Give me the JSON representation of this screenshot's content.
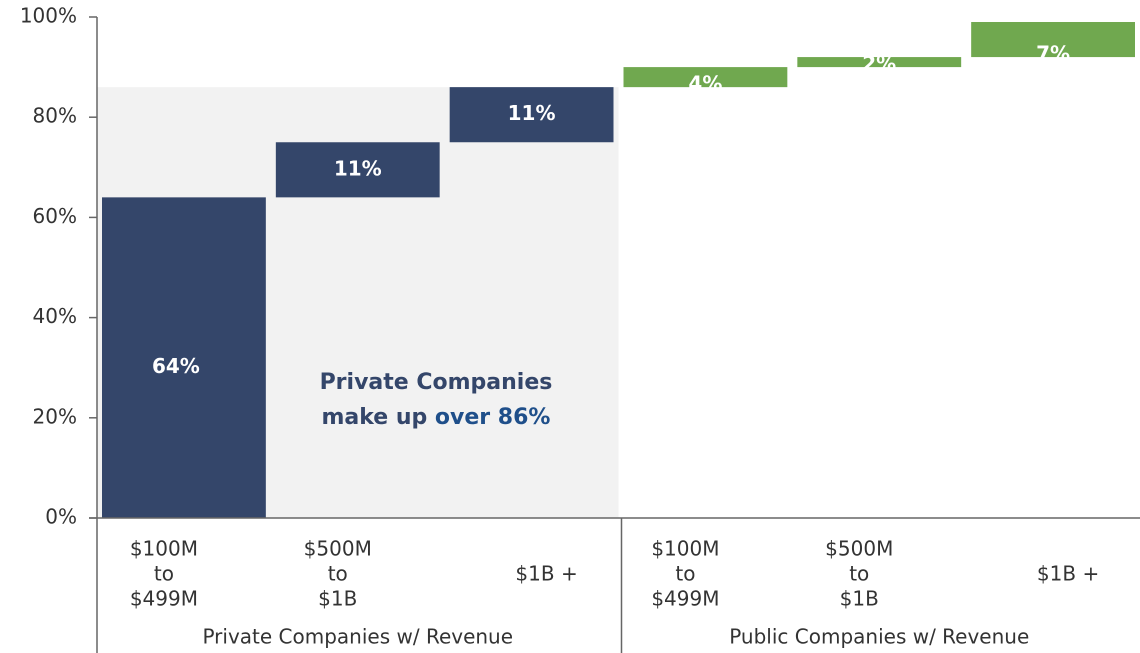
{
  "chart_data": {
    "type": "waterfall",
    "categories": [
      [
        "$100M",
        "to",
        "$499M"
      ],
      [
        "$500M",
        "to",
        "$1B"
      ],
      [
        "$1B +"
      ],
      [
        "$100M",
        "to",
        "$499M"
      ],
      [
        "$500M",
        "to",
        "$1B"
      ],
      [
        "$1B +"
      ]
    ],
    "values": [
      64,
      11,
      11,
      4,
      2,
      7
    ],
    "value_labels": [
      "64%",
      "11%",
      "11%",
      "4%",
      "2%",
      "7%"
    ],
    "colors": [
      "#34466a",
      "#34466a",
      "#34466a",
      "#70a84f",
      "#70a84f",
      "#70a84f"
    ],
    "groups": [
      {
        "label": "Private Companies w/ Revenue",
        "count": 3
      },
      {
        "label": "Public Companies w/ Revenue",
        "count": 3
      }
    ],
    "annotation": {
      "line1": "Private Companies",
      "line2": "make up ",
      "highlight": "over 86%"
    },
    "ylim": [
      0,
      100
    ],
    "yticks": [
      {
        "value": 0,
        "label": "0%"
      },
      {
        "value": 20,
        "label": "20%"
      },
      {
        "value": 40,
        "label": "40%"
      },
      {
        "value": 60,
        "label": "60%"
      },
      {
        "value": 80,
        "label": "80%"
      },
      {
        "value": 100,
        "label": "100%"
      }
    ]
  }
}
